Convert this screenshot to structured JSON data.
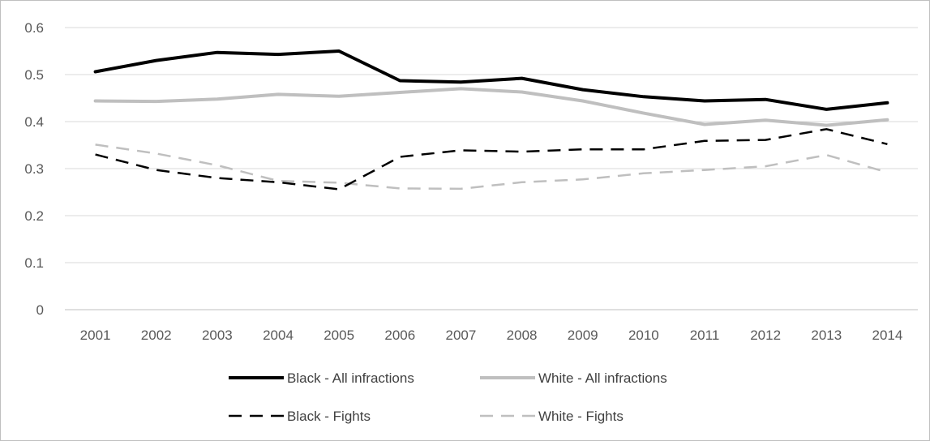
{
  "chart_data": {
    "type": "line",
    "title": "",
    "xlabel": "",
    "ylabel": "",
    "categories": [
      "2001",
      "2002",
      "2003",
      "2004",
      "2005",
      "2006",
      "2007",
      "2008",
      "2009",
      "2010",
      "2011",
      "2012",
      "2013",
      "2014"
    ],
    "ylim": [
      0,
      0.6
    ],
    "y_ticks": [
      "0",
      "0.1",
      "0.2",
      "0.3",
      "0.4",
      "0.5",
      "0.6"
    ],
    "grid": "horizontal",
    "legend_position": "bottom",
    "series": [
      {
        "name": "Black - All infractions",
        "color": "#000000",
        "style": "solid",
        "values": [
          0.506,
          0.53,
          0.547,
          0.543,
          0.55,
          0.487,
          0.484,
          0.492,
          0.468,
          0.453,
          0.444,
          0.447,
          0.426,
          0.44
        ]
      },
      {
        "name": "White - All infractions",
        "color": "#bfbfbf",
        "style": "solid",
        "values": [
          0.444,
          0.443,
          0.448,
          0.458,
          0.454,
          0.462,
          0.47,
          0.463,
          0.444,
          0.418,
          0.394,
          0.403,
          0.392,
          0.404
        ]
      },
      {
        "name": "Black - Fights",
        "color": "#000000",
        "style": "dashed",
        "values": [
          0.33,
          0.297,
          0.28,
          0.271,
          0.256,
          0.325,
          0.339,
          0.336,
          0.341,
          0.341,
          0.359,
          0.361,
          0.384,
          0.352
        ]
      },
      {
        "name": "White - Fights",
        "color": "#bfbfbf",
        "style": "dashed",
        "values": [
          0.351,
          0.332,
          0.307,
          0.274,
          0.27,
          0.258,
          0.257,
          0.271,
          0.277,
          0.29,
          0.297,
          0.305,
          0.329,
          0.292
        ]
      }
    ]
  }
}
